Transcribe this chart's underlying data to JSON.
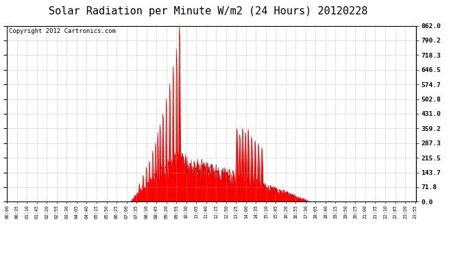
{
  "title": "Solar Radiation per Minute W/m2 (24 Hours) 20120228",
  "copyright_text": "Copyright 2012 Cartronics.com",
  "yticks": [
    0.0,
    71.8,
    143.7,
    215.5,
    287.3,
    359.2,
    431.0,
    502.8,
    574.7,
    646.5,
    718.3,
    790.2,
    862.0
  ],
  "ymax": 862.0,
  "ymin": 0.0,
  "background_color": "#ffffff",
  "fill_color": "#ff0000",
  "line_color": "#cc0000",
  "grid_color": "#aaaaaa",
  "title_fontsize": 11,
  "copyright_fontsize": 6.5,
  "total_minutes": 1440,
  "sunrise_minute": 435,
  "sunset_minute": 1065,
  "peak_minute": 600,
  "peak_value": 862.0,
  "afternoon_peak_minute": 810,
  "afternoon_peak_value": 360,
  "tick_interval": 35
}
